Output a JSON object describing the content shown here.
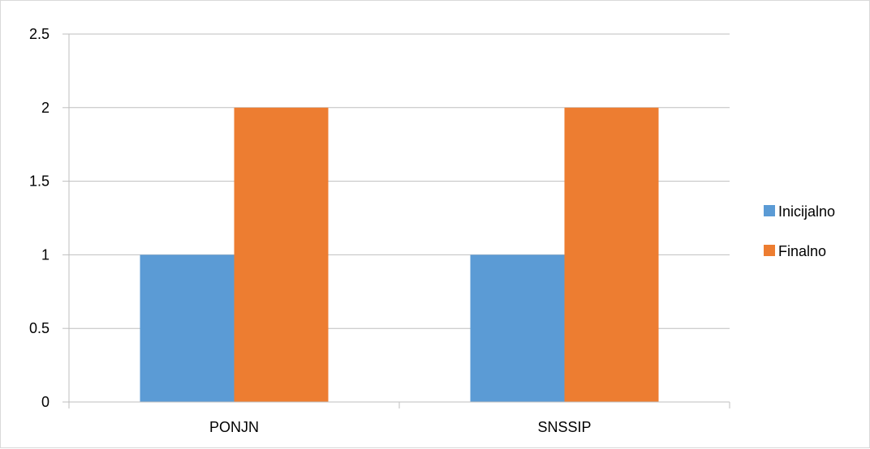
{
  "chart_data": {
    "type": "bar",
    "categories": [
      "PONJN",
      "SNSSIP"
    ],
    "series": [
      {
        "name": "Inicijalno",
        "values": [
          1,
          1
        ],
        "color": "#5b9bd5"
      },
      {
        "name": "Finalno",
        "values": [
          2,
          2
        ],
        "color": "#ed7d31"
      }
    ],
    "y_ticks": [
      "0",
      "0.5",
      "1",
      "1.5",
      "2",
      "2.5"
    ],
    "ylim": [
      0,
      2.5
    ],
    "grid": true,
    "legend_position": "right",
    "gridline_color": "#bfbfbf",
    "axis_color": "#bfbfbf"
  }
}
